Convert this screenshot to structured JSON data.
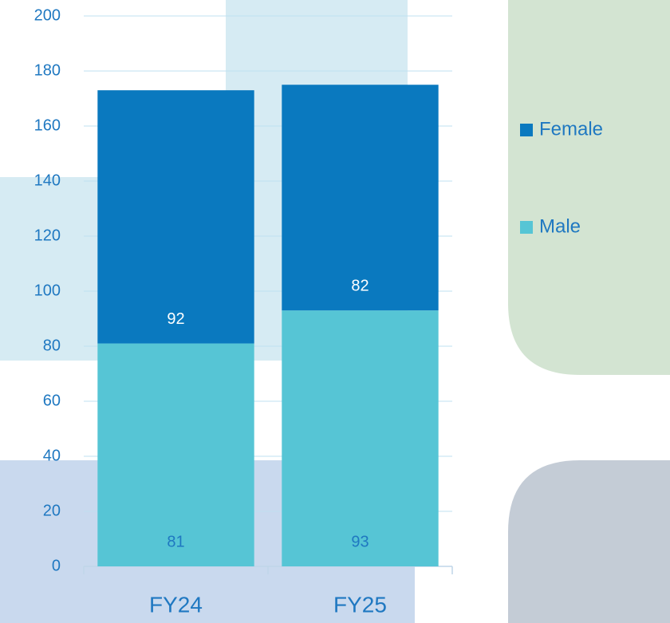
{
  "chart_data": {
    "type": "stacked_bar",
    "categories": [
      "FY24",
      "FY25"
    ],
    "series": [
      {
        "name": "Male",
        "color": "#56C5D5",
        "values": [
          81,
          93
        ]
      },
      {
        "name": "Female",
        "color": "#0A79BF",
        "values": [
          92,
          82
        ]
      }
    ],
    "ylim": [
      0,
      200
    ],
    "yticks": [
      0,
      20,
      40,
      60,
      80,
      100,
      120,
      140,
      160,
      180,
      200
    ],
    "grid": true,
    "legend": "right"
  }
}
